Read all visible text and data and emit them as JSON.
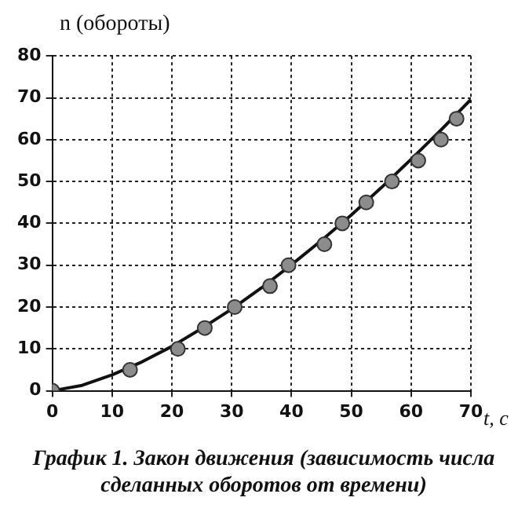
{
  "chart_data": {
    "type": "scatter",
    "title": "График 1. Закон движения (зависимость числа сделанных оборотов от времени)",
    "xlabel": "t, c",
    "ylabel": "n (обороты)",
    "series": [
      {
        "color": "#8c8c8c",
        "marker": "circle",
        "x": [
          0,
          13,
          21,
          25.5,
          30.5,
          36.4,
          39.5,
          45.5,
          48.5,
          52.5,
          56.8,
          61.2,
          65,
          67.6
        ],
        "values": [
          0,
          5,
          10,
          15,
          20,
          25,
          30,
          35,
          40,
          45,
          50,
          55,
          60,
          65
        ]
      },
      {
        "type": "line",
        "color": "#111111",
        "marker": "none",
        "line_style": "solid",
        "x": [
          0,
          5,
          10,
          15,
          20,
          25,
          30,
          35,
          40,
          45,
          50,
          55,
          60,
          65,
          70
        ],
        "values": [
          0,
          1.3,
          3.8,
          6.9,
          10.6,
          14.9,
          19.5,
          24.6,
          30.1,
          35.9,
          42,
          48.5,
          55.3,
          62.3,
          69.6
        ]
      }
    ],
    "xlim": [
      0,
      70
    ],
    "xticks": [
      0,
      10,
      20,
      30,
      40,
      50,
      60,
      70
    ],
    "ylim": [
      0,
      80
    ],
    "yticks": [
      0,
      10,
      20,
      30,
      40,
      50,
      60,
      70,
      80
    ],
    "grid": true,
    "legend": false
  }
}
